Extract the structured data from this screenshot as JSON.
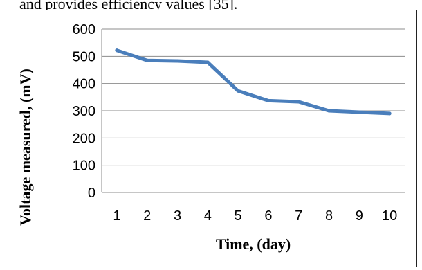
{
  "page": {
    "top_caption": "and provides efficiency values [35]."
  },
  "chart_data": {
    "type": "line",
    "title": "",
    "xlabel": "Time, (day)",
    "ylabel": "Voltage measured, (mV)",
    "ylim": [
      0,
      600
    ],
    "yticks": [
      0,
      100,
      200,
      300,
      400,
      500,
      600
    ],
    "grid": true,
    "legend": "none",
    "categories": [
      "1",
      "2",
      "3",
      "4",
      "5",
      "6",
      "7",
      "8",
      "9",
      "10"
    ],
    "series": [
      {
        "values": [
          522,
          485,
          483,
          478,
          373,
          337,
          333,
          300,
          295,
          290
        ],
        "color": "#4a7ebb"
      }
    ]
  }
}
